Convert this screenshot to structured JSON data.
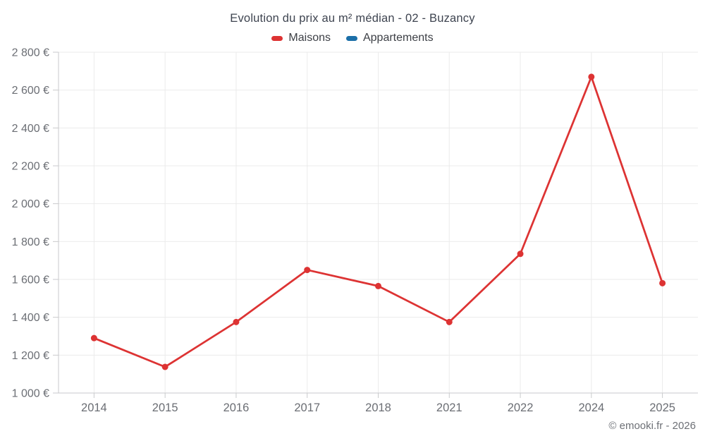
{
  "title": "Evolution du prix au m² médian - 02 - Buzancy",
  "footer": "© emooki.fr - 2026",
  "colors": {
    "maisons_red": "#dd3333",
    "appartements_blue": "#1b6fa8",
    "grid": "#ebebeb",
    "axis": "#c9cacc",
    "tick_label": "#6b6e74",
    "title_text": "#3e4450"
  },
  "chart_data": {
    "type": "line",
    "title": "Evolution du prix au m² médian - 02 - Buzancy",
    "categories": [
      "2014",
      "2015",
      "2016",
      "2017",
      "2018",
      "2021",
      "2022",
      "2024",
      "2025"
    ],
    "series": [
      {
        "name": "Maisons",
        "color": "#dd3333",
        "values": [
          1290,
          1138,
          1375,
          1650,
          1565,
          1375,
          1735,
          2670,
          1580
        ]
      },
      {
        "name": "Appartements",
        "color": "#1b6fa8",
        "values": []
      }
    ],
    "xlabel": "",
    "ylabel": "",
    "ylim": [
      1000,
      2800
    ],
    "ytick_step": 200,
    "ytick_labels": [
      "1 000 €",
      "1 200 €",
      "1 400 €",
      "1 600 €",
      "1 800 €",
      "2 000 €",
      "2 200 €",
      "2 400 €",
      "2 600 €",
      "2 800 €"
    ],
    "grid": true,
    "legend_position": "top"
  }
}
